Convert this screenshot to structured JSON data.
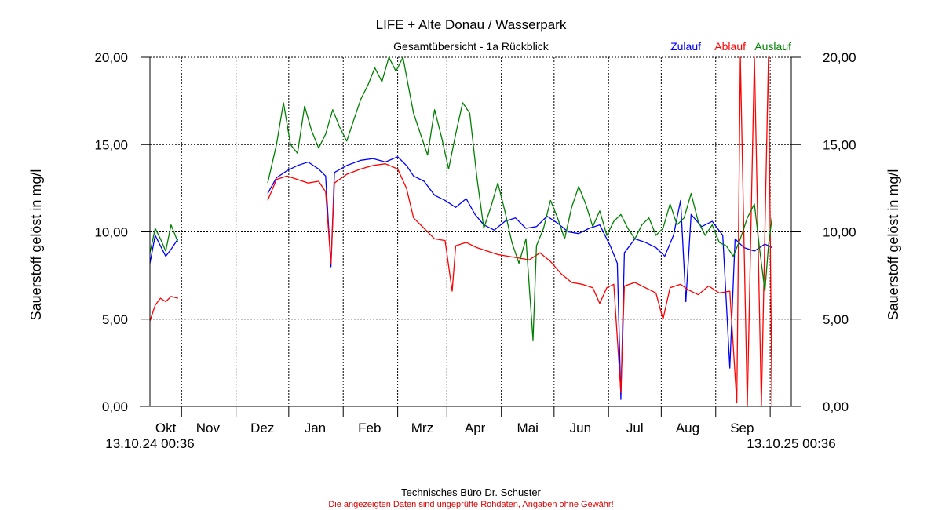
{
  "chart_data": {
    "type": "line",
    "title": "LIFE + Alte Donau / Wasserpark",
    "subtitle": "Gesamtübersicht - 1a Rückblick",
    "ylabel_left": "Sauerstoff gelöst in mg/l",
    "ylabel_right": "Sauerstoff gelöst in mg/l",
    "ylim": [
      0,
      20
    ],
    "yticks": [
      0,
      5,
      10,
      15,
      20
    ],
    "ytick_labels": [
      "0,00",
      "5,00",
      "10,00",
      "15,00",
      "20,00"
    ],
    "x_start_label": "13.10.24 00:36",
    "x_end_label": "13.10.25 00:36",
    "x_range_days": [
      0,
      365
    ],
    "month_boundaries_days": [
      18,
      49,
      79,
      110,
      141,
      169,
      200,
      230,
      261,
      291,
      322,
      353
    ],
    "months": [
      {
        "label": "Okt",
        "day": 9
      },
      {
        "label": "Nov",
        "day": 33
      },
      {
        "label": "Dez",
        "day": 64
      },
      {
        "label": "Jan",
        "day": 94
      },
      {
        "label": "Feb",
        "day": 125
      },
      {
        "label": "Mrz",
        "day": 155
      },
      {
        "label": "Apr",
        "day": 185
      },
      {
        "label": "Mai",
        "day": 215
      },
      {
        "label": "Jun",
        "day": 245
      },
      {
        "label": "Jul",
        "day": 276
      },
      {
        "label": "Aug",
        "day": 306
      },
      {
        "label": "Sep",
        "day": 337
      }
    ],
    "grid": true,
    "legend": "top-right",
    "series": [
      {
        "name": "Zulauf",
        "color": "#0000ff",
        "segments": [
          [
            [
              0,
              8.2
            ],
            [
              3,
              9.8
            ],
            [
              6,
              9.2
            ],
            [
              9,
              8.6
            ],
            [
              12,
              9.0
            ],
            [
              16,
              9.6
            ]
          ],
          [
            [
              67,
              12.2
            ],
            [
              72,
              13.1
            ],
            [
              78,
              13.5
            ],
            [
              84,
              13.8
            ],
            [
              90,
              14.0
            ],
            [
              96,
              13.6
            ],
            [
              100,
              13.2
            ],
            [
              103,
              8.0
            ],
            [
              105,
              13.4
            ],
            [
              112,
              13.8
            ],
            [
              120,
              14.1
            ],
            [
              127,
              14.2
            ],
            [
              134,
              14.0
            ],
            [
              141,
              14.3
            ],
            [
              146,
              13.8
            ],
            [
              150,
              13.2
            ],
            [
              156,
              12.9
            ],
            [
              162,
              12.1
            ],
            [
              168,
              11.8
            ],
            [
              174,
              11.4
            ],
            [
              180,
              11.9
            ],
            [
              185,
              11.0
            ],
            [
              190,
              10.4
            ],
            [
              196,
              10.1
            ],
            [
              202,
              10.6
            ],
            [
              208,
              10.8
            ],
            [
              214,
              10.2
            ],
            [
              220,
              10.3
            ],
            [
              226,
              10.9
            ],
            [
              232,
              10.5
            ],
            [
              238,
              10.0
            ],
            [
              244,
              9.9
            ],
            [
              250,
              10.2
            ],
            [
              256,
              10.4
            ],
            [
              262,
              9.2
            ],
            [
              266,
              8.2
            ],
            [
              268,
              0.4
            ],
            [
              270,
              8.8
            ],
            [
              276,
              9.6
            ],
            [
              282,
              9.4
            ],
            [
              288,
              9.1
            ],
            [
              293,
              8.6
            ],
            [
              298,
              9.8
            ],
            [
              302,
              11.8
            ],
            [
              305,
              6.0
            ],
            [
              308,
              11.0
            ],
            [
              314,
              10.3
            ],
            [
              320,
              10.6
            ],
            [
              326,
              9.8
            ],
            [
              330,
              2.2
            ],
            [
              333,
              9.6
            ],
            [
              338,
              9.1
            ],
            [
              344,
              8.9
            ],
            [
              350,
              9.3
            ],
            [
              354,
              9.1
            ]
          ]
        ]
      },
      {
        "name": "Ablauf",
        "color": "#ff0000",
        "segments": [
          [
            [
              0,
              4.9
            ],
            [
              3,
              5.8
            ],
            [
              6,
              6.2
            ],
            [
              9,
              6.0
            ],
            [
              12,
              6.3
            ],
            [
              16,
              6.2
            ]
          ],
          [
            [
              67,
              11.8
            ],
            [
              72,
              13.0
            ],
            [
              78,
              13.2
            ],
            [
              84,
              13.0
            ],
            [
              90,
              12.8
            ],
            [
              96,
              12.9
            ],
            [
              100,
              12.3
            ],
            [
              103,
              8.2
            ],
            [
              105,
              12.8
            ],
            [
              112,
              13.3
            ],
            [
              120,
              13.6
            ],
            [
              127,
              13.8
            ],
            [
              134,
              13.9
            ],
            [
              141,
              13.6
            ],
            [
              146,
              12.5
            ],
            [
              150,
              10.8
            ],
            [
              156,
              10.2
            ],
            [
              162,
              9.6
            ],
            [
              168,
              9.5
            ],
            [
              172,
              6.6
            ],
            [
              174,
              9.2
            ],
            [
              180,
              9.4
            ],
            [
              186,
              9.1
            ],
            [
              192,
              8.9
            ],
            [
              198,
              8.7
            ],
            [
              204,
              8.6
            ],
            [
              210,
              8.5
            ],
            [
              216,
              8.4
            ],
            [
              222,
              8.8
            ],
            [
              228,
              8.3
            ],
            [
              234,
              7.6
            ],
            [
              240,
              7.1
            ],
            [
              246,
              7.0
            ],
            [
              252,
              6.8
            ],
            [
              256,
              5.9
            ],
            [
              260,
              6.8
            ],
            [
              264,
              7.0
            ],
            [
              268,
              0.8
            ],
            [
              270,
              6.9
            ],
            [
              276,
              7.1
            ],
            [
              282,
              6.8
            ],
            [
              288,
              6.5
            ],
            [
              292,
              5.0
            ],
            [
              296,
              6.8
            ],
            [
              302,
              7.0
            ],
            [
              306,
              6.7
            ],
            [
              312,
              6.4
            ],
            [
              318,
              6.9
            ],
            [
              324,
              6.5
            ],
            [
              330,
              6.6
            ],
            [
              334,
              0.2
            ],
            [
              336,
              20.0
            ],
            [
              340,
              0.0
            ],
            [
              344,
              20.0
            ],
            [
              348,
              0.0
            ],
            [
              352,
              20.0
            ],
            [
              354,
              0.0
            ]
          ]
        ]
      },
      {
        "name": "Auslauf",
        "color": "#008000",
        "segments": [
          [
            [
              0,
              8.8
            ],
            [
              3,
              10.2
            ],
            [
              6,
              9.6
            ],
            [
              9,
              8.9
            ],
            [
              12,
              10.4
            ],
            [
              16,
              9.4
            ]
          ],
          [
            [
              67,
              12.8
            ],
            [
              72,
              15.0
            ],
            [
              76,
              17.4
            ],
            [
              80,
              15.0
            ],
            [
              84,
              14.5
            ],
            [
              88,
              17.2
            ],
            [
              92,
              15.8
            ],
            [
              96,
              14.8
            ],
            [
              100,
              15.6
            ],
            [
              104,
              17.0
            ],
            [
              108,
              16.0
            ],
            [
              112,
              15.2
            ],
            [
              116,
              16.4
            ],
            [
              120,
              17.6
            ],
            [
              124,
              18.4
            ],
            [
              128,
              19.4
            ],
            [
              132,
              18.6
            ],
            [
              136,
              20.0
            ],
            [
              140,
              19.2
            ],
            [
              144,
              20.0
            ],
            [
              147,
              18.4
            ],
            [
              150,
              16.8
            ],
            [
              154,
              15.6
            ],
            [
              158,
              14.4
            ],
            [
              162,
              17.0
            ],
            [
              166,
              15.4
            ],
            [
              170,
              13.6
            ],
            [
              174,
              15.6
            ],
            [
              178,
              17.4
            ],
            [
              182,
              16.8
            ],
            [
              186,
              13.2
            ],
            [
              190,
              10.2
            ],
            [
              194,
              11.4
            ],
            [
              198,
              12.8
            ],
            [
              202,
              11.2
            ],
            [
              206,
              9.4
            ],
            [
              210,
              8.2
            ],
            [
              214,
              9.6
            ],
            [
              218,
              3.8
            ],
            [
              220,
              9.2
            ],
            [
              224,
              10.2
            ],
            [
              228,
              11.8
            ],
            [
              232,
              10.8
            ],
            [
              236,
              9.6
            ],
            [
              240,
              11.4
            ],
            [
              244,
              12.6
            ],
            [
              248,
              11.6
            ],
            [
              252,
              10.3
            ],
            [
              256,
              11.2
            ],
            [
              260,
              9.8
            ],
            [
              264,
              10.6
            ],
            [
              268,
              11.0
            ],
            [
              272,
              10.2
            ],
            [
              276,
              9.6
            ],
            [
              280,
              10.4
            ],
            [
              284,
              10.8
            ],
            [
              288,
              9.8
            ],
            [
              292,
              10.2
            ],
            [
              296,
              11.6
            ],
            [
              300,
              10.4
            ],
            [
              304,
              10.8
            ],
            [
              308,
              12.2
            ],
            [
              312,
              10.6
            ],
            [
              316,
              9.8
            ],
            [
              320,
              10.4
            ],
            [
              324,
              9.4
            ],
            [
              328,
              9.2
            ],
            [
              332,
              8.6
            ],
            [
              336,
              9.6
            ],
            [
              340,
              10.8
            ],
            [
              344,
              11.6
            ],
            [
              347,
              9.0
            ],
            [
              350,
              6.6
            ],
            [
              352,
              9.2
            ],
            [
              354,
              10.8
            ]
          ]
        ]
      }
    ]
  },
  "footer": {
    "company": "Technisches Büro Dr. Schuster",
    "disclaimer": "Die angezeigten Daten sind ungeprüfte Rohdaten, Angaben ohne Gewähr!"
  }
}
